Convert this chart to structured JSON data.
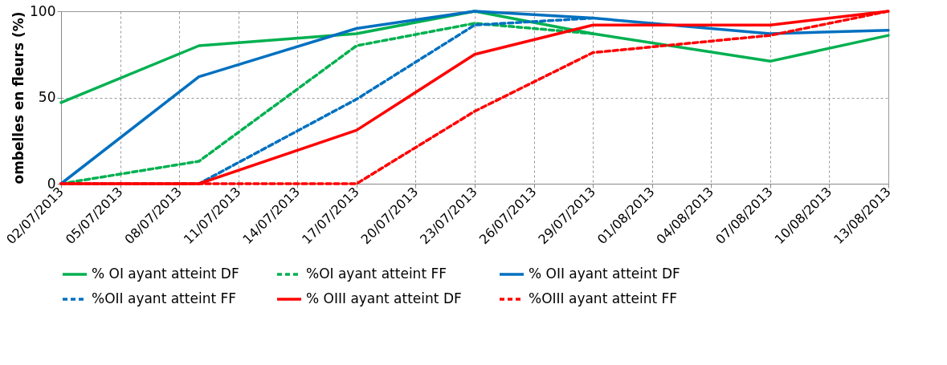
{
  "chart_data": {
    "type": "line",
    "ylabel": "ombelles en fleurs (%)",
    "ylim": [
      0,
      100
    ],
    "yticks": [
      0,
      50,
      100
    ],
    "xlim": [
      "2013-07-02",
      "2013-08-13"
    ],
    "xticks": [
      {
        "value": "2013-07-02",
        "label": "02/07/2013"
      },
      {
        "value": "2013-07-05",
        "label": "05/07/2013"
      },
      {
        "value": "2013-07-08",
        "label": "08/07/2013"
      },
      {
        "value": "2013-07-11",
        "label": "11/07/2013"
      },
      {
        "value": "2013-07-14",
        "label": "14/07/2013"
      },
      {
        "value": "2013-07-17",
        "label": "17/07/2013"
      },
      {
        "value": "2013-07-20",
        "label": "20/07/2013"
      },
      {
        "value": "2013-07-23",
        "label": "23/07/2013"
      },
      {
        "value": "2013-07-26",
        "label": "26/07/2013"
      },
      {
        "value": "2013-07-29",
        "label": "29/07/2013"
      },
      {
        "value": "2013-08-01",
        "label": "01/08/2013"
      },
      {
        "value": "2013-08-04",
        "label": "04/08/2013"
      },
      {
        "value": "2013-08-07",
        "label": "07/08/2013"
      },
      {
        "value": "2013-08-10",
        "label": "10/08/2013"
      },
      {
        "value": "2013-08-13",
        "label": "13/08/2013"
      }
    ],
    "x": [
      "2013-07-02",
      "2013-07-09",
      "2013-07-17",
      "2013-07-23",
      "2013-07-29",
      "2013-08-07",
      "2013-08-13"
    ],
    "series": [
      {
        "name": "% OI ayant atteint DF",
        "color": "#00b050",
        "line_style": "solid",
        "values": [
          47,
          80,
          87,
          100,
          87,
          71,
          86
        ]
      },
      {
        "name": "%OI ayant atteint FF",
        "color": "#00b050",
        "line_style": "dashed",
        "values": [
          0,
          13,
          80,
          93,
          87,
          null,
          null
        ]
      },
      {
        "name": "% OII ayant atteint DF",
        "color": "#0070c0",
        "line_style": "solid",
        "values": [
          0,
          62,
          90,
          100,
          96,
          87,
          89
        ]
      },
      {
        "name": "%OII ayant atteint FF",
        "color": "#0070c0",
        "line_style": "dashed",
        "values": [
          0,
          0,
          49,
          92,
          96,
          null,
          null
        ]
      },
      {
        "name": "% OIII ayant atteint DF",
        "color": "#ff0000",
        "line_style": "solid",
        "values": [
          0,
          0,
          31,
          75,
          92,
          92,
          100
        ]
      },
      {
        "name": "%OIII ayant atteint FF",
        "color": "#ff0000",
        "line_style": "dashed",
        "values": [
          0,
          0,
          0,
          42,
          76,
          86,
          100
        ]
      }
    ],
    "grid": true,
    "legend": "bottom",
    "marker": "none"
  }
}
